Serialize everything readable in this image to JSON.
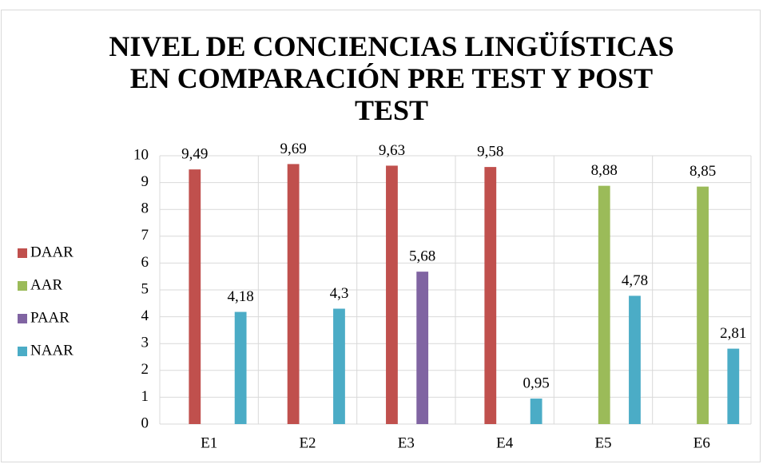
{
  "chart_data": {
    "type": "bar",
    "title": "NIVEL DE CONCIENCIAS LINGÜÍSTICAS EN COMPARACIÓN PRE TEST Y POST TEST",
    "categories": [
      "E1",
      "E2",
      "E3",
      "E4",
      "E5",
      "E6"
    ],
    "series": [
      {
        "name": "DAAR",
        "color": "#c0504d",
        "values": [
          9.49,
          9.69,
          9.63,
          9.58,
          null,
          null
        ],
        "value_labels": [
          "9,49",
          "9,69",
          "9,63",
          "9,58",
          null,
          null
        ]
      },
      {
        "name": "AAR",
        "color": "#9bbb59",
        "values": [
          null,
          null,
          null,
          null,
          8.88,
          8.85
        ],
        "value_labels": [
          null,
          null,
          null,
          null,
          "8,88",
          "8,85"
        ]
      },
      {
        "name": "PAAR",
        "color": "#8064a2",
        "values": [
          null,
          null,
          5.68,
          null,
          null,
          null
        ],
        "value_labels": [
          null,
          null,
          "5,68",
          null,
          null,
          null
        ]
      },
      {
        "name": "NAAR",
        "color": "#4bacc6",
        "values": [
          4.18,
          4.3,
          null,
          0.95,
          4.78,
          2.81
        ],
        "value_labels": [
          "4,18",
          "4,3",
          null,
          "0,95",
          "4,78",
          "2,81"
        ]
      }
    ],
    "ylim": [
      0,
      10
    ],
    "yticks": [
      0,
      1,
      2,
      3,
      4,
      5,
      6,
      7,
      8,
      9,
      10
    ],
    "grid": true,
    "legend": "left"
  }
}
